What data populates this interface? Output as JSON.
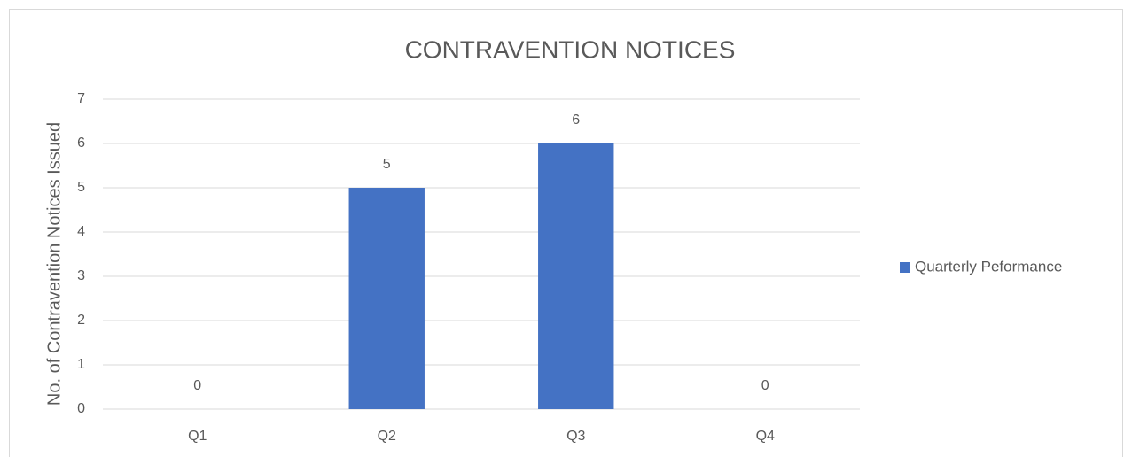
{
  "chart_data": {
    "type": "bar",
    "title": "CONTRAVENTION NOTICES",
    "y_label": "No. of Contravention Notices Issued",
    "categories": [
      "Q1",
      "Q2",
      "Q3",
      "Q4"
    ],
    "series": [
      {
        "name": "Quarterly Peformance",
        "color": "#4472c4",
        "values": [
          0,
          5,
          6,
          0
        ]
      }
    ],
    "ylim": [
      0,
      7
    ],
    "yticks": [
      0,
      1,
      2,
      3,
      4,
      5,
      6,
      7
    ],
    "grid": true,
    "legend": "right"
  }
}
